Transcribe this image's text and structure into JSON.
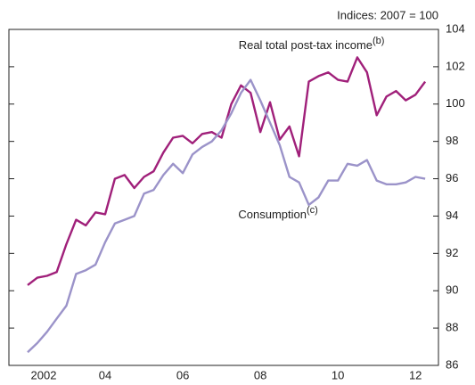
{
  "chart_data": {
    "type": "line",
    "subtitle": "Indices:  2007 = 100",
    "categories": [
      "2002",
      null,
      null,
      null,
      null,
      null,
      null,
      null,
      "04",
      null,
      null,
      null,
      null,
      null,
      null,
      null,
      "06",
      null,
      null,
      null,
      null,
      null,
      null,
      null,
      "08",
      null,
      null,
      null,
      null,
      null,
      null,
      null,
      "10",
      null,
      null,
      null,
      null,
      null,
      null,
      null,
      "12",
      null
    ],
    "series": [
      {
        "name": "Real total post-tax income",
        "footnote": "(b)",
        "color": "#a0207a",
        "values": [
          90.3,
          90.7,
          90.8,
          91.0,
          92.5,
          93.8,
          93.5,
          94.2,
          94.1,
          96.0,
          96.2,
          95.5,
          96.1,
          96.4,
          97.4,
          98.2,
          98.3,
          97.9,
          98.4,
          98.5,
          98.2,
          100.0,
          101.0,
          100.6,
          98.5,
          100.1,
          98.1,
          98.8,
          97.2,
          101.2,
          101.5,
          101.7,
          101.3,
          101.2,
          102.5,
          101.7,
          99.4,
          100.4,
          100.7,
          100.2,
          100.5,
          101.2
        ]
      },
      {
        "name": "Consumption",
        "footnote": "(c)",
        "color": "#9b93c9",
        "values": [
          86.7,
          87.2,
          87.8,
          88.5,
          89.2,
          90.9,
          91.1,
          91.4,
          92.6,
          93.6,
          93.8,
          94.0,
          95.2,
          95.4,
          96.2,
          96.8,
          96.3,
          97.3,
          97.7,
          98.0,
          98.6,
          99.5,
          100.6,
          101.3,
          100.2,
          99.0,
          97.8,
          96.1,
          95.8,
          94.6,
          95.0,
          95.9,
          95.9,
          96.8,
          96.7,
          97.0,
          95.9,
          95.7,
          95.7,
          95.8,
          96.1,
          96.0
        ]
      }
    ],
    "ylim": [
      86,
      104
    ],
    "yticks": [
      86,
      88,
      90,
      92,
      94,
      96,
      98,
      100,
      102,
      104
    ],
    "grid": false
  }
}
